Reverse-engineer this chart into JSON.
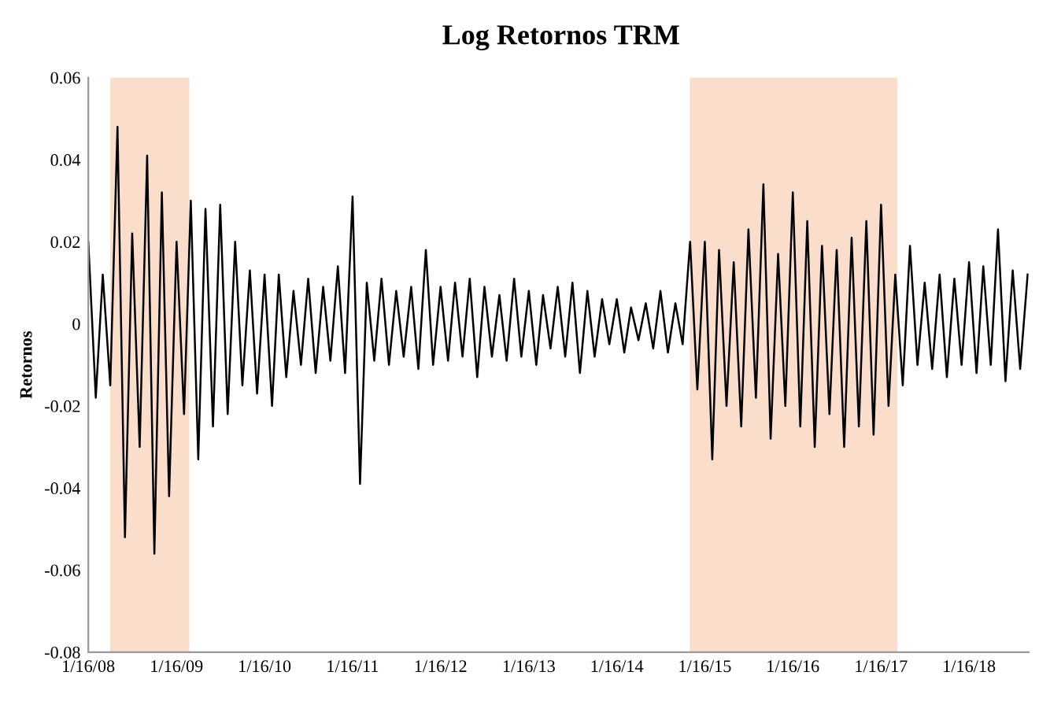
{
  "chart_data": {
    "type": "line",
    "title": "Log Retornos TRM",
    "ylabel": "Retornos",
    "x": [
      "2008-01-16",
      "2008-02-16",
      "2008-03-16",
      "2008-04-16",
      "2008-05-16",
      "2008-06-16",
      "2008-07-16",
      "2008-08-16",
      "2008-09-16",
      "2008-10-16",
      "2008-11-16",
      "2008-12-16",
      "2009-01-16",
      "2009-02-16",
      "2009-03-16",
      "2009-04-16",
      "2009-05-16",
      "2009-06-16",
      "2009-07-16",
      "2009-08-16",
      "2009-09-16",
      "2009-10-16",
      "2009-11-16",
      "2009-12-16",
      "2010-01-16",
      "2010-02-16",
      "2010-03-16",
      "2010-04-16",
      "2010-05-16",
      "2010-06-16",
      "2010-07-16",
      "2010-08-16",
      "2010-09-16",
      "2010-10-16",
      "2010-11-16",
      "2010-12-16",
      "2011-01-16",
      "2011-02-16",
      "2011-03-16",
      "2011-04-16",
      "2011-05-16",
      "2011-06-16",
      "2011-07-16",
      "2011-08-16",
      "2011-09-16",
      "2011-10-16",
      "2011-11-16",
      "2011-12-16",
      "2012-01-16",
      "2012-02-16",
      "2012-03-16",
      "2012-04-16",
      "2012-05-16",
      "2012-06-16",
      "2012-07-16",
      "2012-08-16",
      "2012-09-16",
      "2012-10-16",
      "2012-11-16",
      "2012-12-16",
      "2013-01-16",
      "2013-02-16",
      "2013-03-16",
      "2013-04-16",
      "2013-05-16",
      "2013-06-16",
      "2013-07-16",
      "2013-08-16",
      "2013-09-16",
      "2013-10-16",
      "2013-11-16",
      "2013-12-16",
      "2014-01-16",
      "2014-02-16",
      "2014-03-16",
      "2014-04-16",
      "2014-05-16",
      "2014-06-16",
      "2014-07-16",
      "2014-08-16",
      "2014-09-16",
      "2014-10-16",
      "2014-11-16",
      "2014-12-16",
      "2015-01-16",
      "2015-02-16",
      "2015-03-16",
      "2015-04-16",
      "2015-05-16",
      "2015-06-16",
      "2015-07-16",
      "2015-08-16",
      "2015-09-16",
      "2015-10-16",
      "2015-11-16",
      "2015-12-16",
      "2016-01-16",
      "2016-02-16",
      "2016-03-16",
      "2016-04-16",
      "2016-05-16",
      "2016-06-16",
      "2016-07-16",
      "2016-08-16",
      "2016-09-16",
      "2016-10-16",
      "2016-11-16",
      "2016-12-16",
      "2017-01-16",
      "2017-02-16",
      "2017-03-16",
      "2017-04-16",
      "2017-05-16",
      "2017-06-16",
      "2017-07-16",
      "2017-08-16",
      "2017-09-16",
      "2017-10-16",
      "2017-11-16",
      "2017-12-16",
      "2018-01-16",
      "2018-02-16",
      "2018-03-16",
      "2018-04-16",
      "2018-05-16",
      "2018-06-16",
      "2018-07-16",
      "2018-08-16",
      "2018-09-16"
    ],
    "series": [
      {
        "color": "#000000",
        "values": [
          0.02,
          -0.018,
          0.012,
          -0.015,
          0.048,
          -0.052,
          0.022,
          -0.03,
          0.041,
          -0.056,
          0.032,
          -0.042,
          0.02,
          -0.022,
          0.03,
          -0.033,
          0.028,
          -0.025,
          0.029,
          -0.022,
          0.02,
          -0.015,
          0.013,
          -0.017,
          0.012,
          -0.02,
          0.012,
          -0.013,
          0.008,
          -0.01,
          0.011,
          -0.012,
          0.009,
          -0.009,
          0.014,
          -0.012,
          0.031,
          -0.039,
          0.01,
          -0.009,
          0.011,
          -0.01,
          0.008,
          -0.008,
          0.009,
          -0.011,
          0.018,
          -0.01,
          0.009,
          -0.009,
          0.01,
          -0.008,
          0.011,
          -0.013,
          0.009,
          -0.008,
          0.007,
          -0.009,
          0.011,
          -0.008,
          0.008,
          -0.01,
          0.007,
          -0.006,
          0.009,
          -0.008,
          0.01,
          -0.012,
          0.008,
          -0.008,
          0.006,
          -0.005,
          0.006,
          -0.007,
          0.004,
          -0.004,
          0.005,
          -0.006,
          0.008,
          -0.007,
          0.005,
          -0.005,
          0.02,
          -0.016,
          0.02,
          -0.033,
          0.018,
          -0.02,
          0.015,
          -0.025,
          0.023,
          -0.018,
          0.034,
          -0.028,
          0.017,
          -0.02,
          0.032,
          -0.025,
          0.025,
          -0.03,
          0.019,
          -0.022,
          0.018,
          -0.03,
          0.021,
          -0.025,
          0.025,
          -0.027,
          0.029,
          -0.02,
          0.012,
          -0.015,
          0.019,
          -0.01,
          0.01,
          -0.011,
          0.012,
          -0.013,
          0.011,
          -0.01,
          0.015,
          -0.012,
          0.014,
          -0.01,
          0.023,
          -0.014,
          0.013,
          -0.011,
          0.012
        ]
      }
    ],
    "xlim": [
      "2008-01-16",
      "2018-09-20"
    ],
    "xticks": [
      {
        "value": "2008-01-16",
        "label": "1/16/08"
      },
      {
        "value": "2009-01-16",
        "label": "1/16/09"
      },
      {
        "value": "2010-01-16",
        "label": "1/16/10"
      },
      {
        "value": "2011-01-16",
        "label": "1/16/11"
      },
      {
        "value": "2012-01-16",
        "label": "1/16/12"
      },
      {
        "value": "2013-01-16",
        "label": "1/16/13"
      },
      {
        "value": "2014-01-16",
        "label": "1/16/14"
      },
      {
        "value": "2015-01-16",
        "label": "1/16/15"
      },
      {
        "value": "2016-01-16",
        "label": "1/16/16"
      },
      {
        "value": "2017-01-16",
        "label": "1/16/17"
      },
      {
        "value": "2018-01-16",
        "label": "1/16/18"
      }
    ],
    "ylim": [
      -0.08,
      0.06
    ],
    "yticks": [
      -0.08,
      -0.06,
      -0.04,
      -0.02,
      0,
      0.02,
      0.04,
      0.06
    ],
    "bands": [
      {
        "axis": "x",
        "from": "2008-04-16",
        "to": "2009-03-10",
        "color": "#f9d9c4"
      },
      {
        "axis": "x",
        "from": "2014-11-15",
        "to": "2017-03-25",
        "color": "#f9d9c4"
      }
    ],
    "grid": false,
    "line_style": "solid",
    "marker": "none"
  }
}
